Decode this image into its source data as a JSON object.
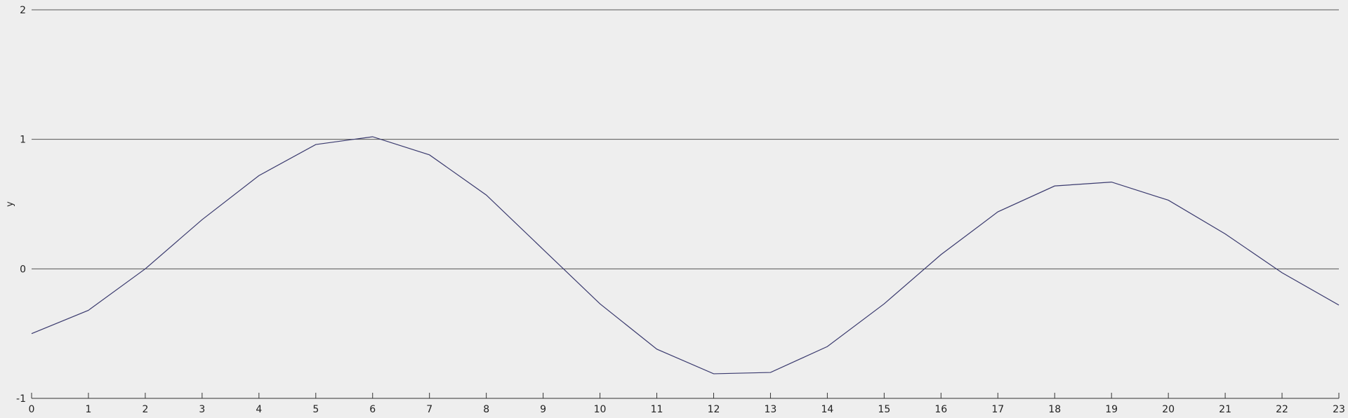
{
  "chart_data": {
    "type": "line",
    "title": "",
    "xlabel": "",
    "ylabel": "y",
    "x": [
      0,
      1,
      2,
      3,
      4,
      5,
      6,
      7,
      8,
      9,
      10,
      11,
      12,
      13,
      14,
      15,
      16,
      17,
      18,
      19,
      20,
      21,
      22,
      23
    ],
    "series": [
      {
        "values": [
          -0.5,
          -0.32,
          0.0,
          0.38,
          0.72,
          0.96,
          1.02,
          0.88,
          0.57,
          0.15,
          -0.27,
          -0.62,
          -0.81,
          -0.8,
          -0.6,
          -0.27,
          0.11,
          0.44,
          0.64,
          0.67,
          0.53,
          0.27,
          -0.03,
          -0.28
        ]
      }
    ],
    "xlim": [
      0,
      23
    ],
    "ylim": [
      -1,
      2
    ],
    "y_ticks": [
      -1,
      0,
      1,
      2
    ],
    "x_ticks": [
      0,
      1,
      2,
      3,
      4,
      5,
      6,
      7,
      8,
      9,
      10,
      11,
      12,
      13,
      14,
      15,
      16,
      17,
      18,
      19,
      20,
      21,
      22,
      23
    ],
    "grid": "horizontal",
    "legend": "none",
    "colors": {
      "background": "#eeeeee",
      "line": "#3a3a6e",
      "grid": "#555555",
      "axis": "#333333",
      "text": "#222222"
    }
  }
}
